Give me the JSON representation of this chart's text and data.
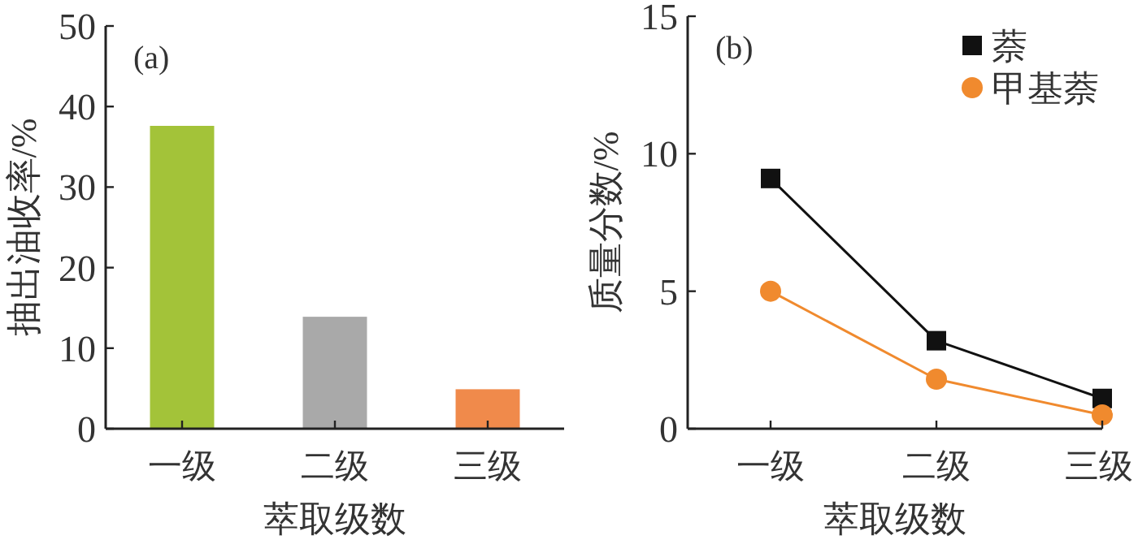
{
  "chart_data": [
    {
      "type": "bar",
      "title": "(a)",
      "xlabel": "萃取级数",
      "ylabel": "抽出油收率/%",
      "categories": [
        "一级",
        "二级",
        "三级"
      ],
      "values": [
        37.6,
        13.9,
        4.9
      ],
      "colors": [
        "#a3c339",
        "#a9a9a9",
        "#f08a4b"
      ],
      "ylim": [
        0,
        50
      ],
      "yticks": [
        0,
        10,
        20,
        30,
        40,
        50
      ]
    },
    {
      "type": "line",
      "title": "(b)",
      "xlabel": "萃取级数",
      "ylabel": "质量分数/%",
      "categories": [
        "一级",
        "二级",
        "三级"
      ],
      "ylim": [
        0,
        15
      ],
      "yticks": [
        0,
        5,
        10,
        15
      ],
      "legend": "top right",
      "series": [
        {
          "name": "萘",
          "color": "#111111",
          "marker": "square",
          "values": [
            9.1,
            3.2,
            1.1
          ]
        },
        {
          "name": "甲基萘",
          "color": "#f08a2e",
          "marker": "circle",
          "values": [
            5.0,
            1.8,
            0.5
          ]
        }
      ]
    }
  ]
}
